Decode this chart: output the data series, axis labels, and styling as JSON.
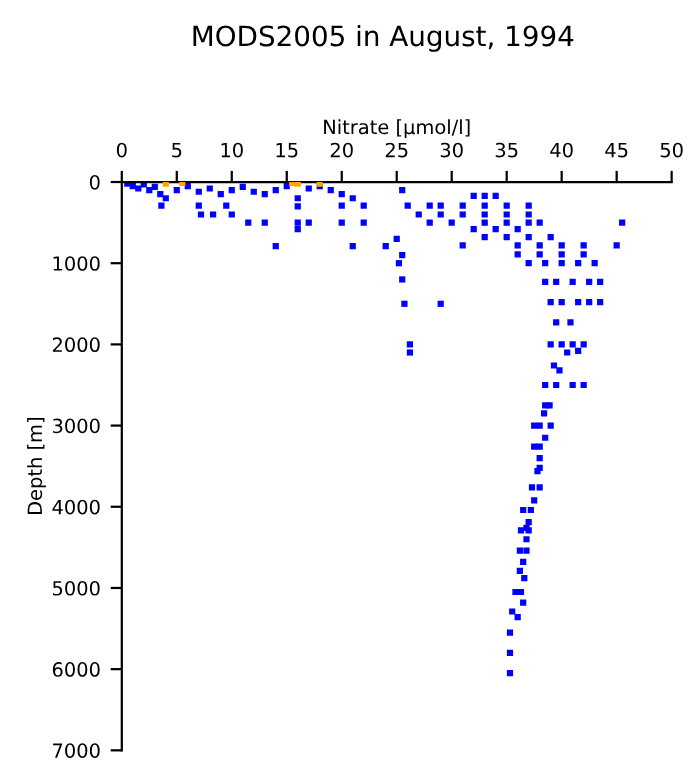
{
  "chart_data": {
    "type": "scatter",
    "title": "MODS2005 in August, 1994",
    "xlabel": "Nitrate [µmol/l]",
    "ylabel": "Depth [m]",
    "xlim": [
      0,
      50
    ],
    "xticks": [
      0,
      5,
      10,
      15,
      20,
      25,
      30,
      35,
      40,
      45,
      50
    ],
    "ylim": [
      7000,
      0
    ],
    "yticks": [
      0,
      1000,
      2000,
      3000,
      4000,
      5000,
      6000,
      7000
    ],
    "grid": false,
    "legend": false,
    "marker": "square",
    "series": [
      {
        "color": "#0000ff",
        "x": [
          0.5,
          1,
          1.5,
          2,
          2.5,
          3,
          3.5,
          4,
          5,
          6,
          7,
          8,
          9,
          10,
          11,
          12,
          13,
          14,
          15,
          16,
          17,
          18,
          19,
          20,
          21,
          3.6,
          7,
          9.5,
          16,
          7.2,
          8.3,
          10,
          11.5,
          13,
          16,
          17,
          20,
          22,
          16,
          14,
          21,
          24,
          25,
          25.5,
          25.2,
          25.5,
          25.7,
          26.2,
          26.2,
          29,
          20,
          22,
          25.5,
          32,
          33,
          34,
          26,
          28,
          29,
          31,
          33,
          35,
          37,
          27,
          29,
          31,
          33,
          35,
          37,
          28,
          30,
          33,
          35,
          37,
          38,
          45.5,
          32,
          34,
          36,
          33,
          35,
          37,
          39,
          31,
          36,
          38,
          40,
          42,
          45,
          36,
          38,
          40,
          42,
          37,
          38.5,
          40,
          41.5,
          43,
          38.5,
          39.5,
          41,
          42.5,
          43.5,
          39,
          40,
          41.5,
          42.5,
          43.5,
          39.5,
          40.8,
          39,
          40,
          41,
          42,
          40.5,
          41.5,
          39.3,
          39.8,
          38.5,
          39.5,
          41,
          42,
          38.5,
          38.9,
          38.4,
          37.5,
          38,
          39,
          38.5,
          37.5,
          38,
          38,
          38,
          37.8,
          37.3,
          38,
          37.5,
          36.5,
          37.2,
          37,
          36.8,
          36.3,
          37,
          36.8,
          36.2,
          36.8,
          36.5,
          36.2,
          36.6,
          35.8,
          36.3,
          36.5,
          35.5,
          36,
          35.3,
          35.3,
          35.3
        ],
        "values": [
          20,
          50,
          80,
          30,
          100,
          60,
          150,
          200,
          100,
          50,
          120,
          80,
          150,
          100,
          60,
          120,
          150,
          100,
          50,
          200,
          80,
          50,
          100,
          150,
          200,
          290,
          290,
          290,
          300,
          400,
          400,
          400,
          500,
          500,
          500,
          500,
          500,
          500,
          580,
          790,
          790,
          790,
          700,
          900,
          1000,
          1200,
          1500,
          2000,
          2100,
          1500,
          290,
          290,
          100,
          170,
          170,
          170,
          290,
          290,
          290,
          290,
          290,
          290,
          290,
          400,
          400,
          400,
          400,
          400,
          400,
          500,
          500,
          500,
          500,
          500,
          500,
          500,
          580,
          580,
          580,
          680,
          680,
          680,
          680,
          780,
          780,
          780,
          780,
          780,
          780,
          890,
          890,
          890,
          890,
          1000,
          1000,
          1000,
          1000,
          1000,
          1230,
          1230,
          1230,
          1230,
          1230,
          1480,
          1480,
          1480,
          1480,
          1480,
          1730,
          1730,
          2000,
          2000,
          2000,
          2000,
          2100,
          2080,
          2260,
          2320,
          2500,
          2500,
          2500,
          2500,
          2750,
          2750,
          2850,
          3000,
          3000,
          3000,
          3150,
          3260,
          3260,
          3400,
          3520,
          3560,
          3760,
          3760,
          3920,
          4040,
          4040,
          4190,
          4260,
          4290,
          4290,
          4400,
          4540,
          4540,
          4680,
          4790,
          4880,
          5050,
          5050,
          5180,
          5290,
          5360,
          5550,
          5800,
          6050
        ]
      },
      {
        "color": "#ffa500",
        "x": [
          4,
          5.5,
          15.5,
          16,
          18
        ],
        "values": [
          20,
          10,
          10,
          20,
          20
        ]
      }
    ]
  }
}
